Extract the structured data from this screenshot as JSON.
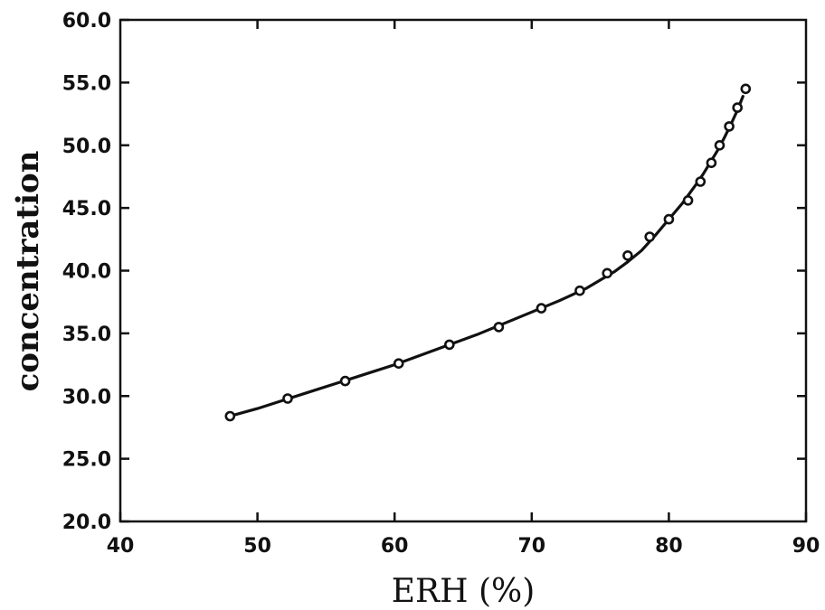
{
  "chart_data": {
    "type": "scatter",
    "title": "",
    "xlabel": "ERH (%)",
    "ylabel": "concentration",
    "xlim": [
      40,
      90
    ],
    "ylim": [
      20.0,
      60.0
    ],
    "grid": false,
    "xticks": [
      "40",
      "50",
      "60",
      "70",
      "80",
      "90"
    ],
    "yticks": [
      "20.0",
      "25.0",
      "30.0",
      "35.0",
      "40.0",
      "45.0",
      "50.0",
      "55.0",
      "60.0"
    ],
    "series": [
      {
        "kind": "points",
        "x": [
          48.0,
          52.2,
          56.4,
          60.3,
          64.0,
          67.6,
          70.7,
          73.5,
          75.5,
          77.0,
          78.6,
          80.0,
          81.4,
          82.3,
          83.1,
          83.7,
          84.4,
          85.0,
          85.6
        ],
        "y": [
          28.4,
          29.8,
          31.2,
          32.6,
          34.1,
          35.5,
          37.0,
          38.4,
          39.8,
          41.2,
          42.7,
          44.1,
          45.6,
          47.1,
          48.6,
          50.0,
          51.5,
          53.0,
          54.5
        ]
      },
      {
        "kind": "fit-line",
        "x": [
          48.0,
          50.0,
          52.0,
          54.0,
          56.0,
          58.0,
          60.0,
          62.0,
          64.0,
          66.0,
          68.0,
          70.0,
          72.0,
          74.0,
          76.0,
          77.0,
          78.0,
          79.0,
          80.0,
          81.0,
          82.0,
          82.5,
          83.0,
          83.5,
          84.0,
          84.5,
          85.0,
          85.4
        ],
        "y": [
          28.4,
          29.0,
          29.7,
          30.4,
          31.1,
          31.8,
          32.5,
          33.3,
          34.1,
          34.9,
          35.8,
          36.7,
          37.6,
          38.6,
          39.9,
          40.7,
          41.6,
          42.8,
          44.1,
          45.4,
          46.9,
          47.7,
          48.6,
          49.5,
          50.5,
          51.6,
          52.8,
          53.9
        ]
      }
    ]
  }
}
